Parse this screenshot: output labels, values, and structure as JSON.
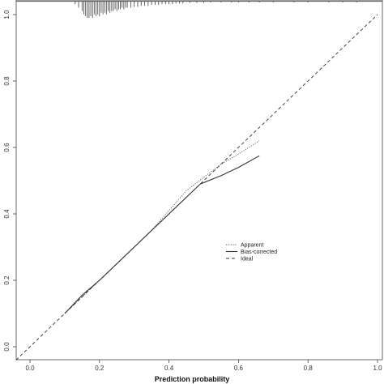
{
  "chart_data": {
    "type": "line",
    "title": "",
    "xlabel": "Prediction probability",
    "ylabel": "",
    "xlim": [
      0.0,
      1.0
    ],
    "ylim": [
      0.0,
      1.0
    ],
    "x_ticks": [
      "0.0",
      "0.2",
      "0.4",
      "0.6",
      "0.8",
      "1.0"
    ],
    "y_ticks": [
      "0.0",
      "0.2",
      "0.4",
      "0.6",
      "0.8",
      "1.0"
    ],
    "grid": false,
    "legend_position": "center-right",
    "series": [
      {
        "name": "Apparent",
        "style": "dotted",
        "color": "#555555",
        "x": [
          0.1,
          0.15,
          0.2,
          0.25,
          0.3,
          0.35,
          0.4,
          0.45,
          0.5,
          0.55,
          0.6,
          0.66
        ],
        "y": [
          0.1,
          0.15,
          0.2,
          0.25,
          0.3,
          0.35,
          0.41,
          0.47,
          0.51,
          0.55,
          0.58,
          0.62
        ]
      },
      {
        "name": "Bias-corrected",
        "style": "solid",
        "color": "#333333",
        "x": [
          0.1,
          0.15,
          0.2,
          0.25,
          0.3,
          0.35,
          0.4,
          0.45,
          0.49,
          0.55,
          0.6,
          0.66
        ],
        "y": [
          0.1,
          0.155,
          0.2,
          0.25,
          0.3,
          0.35,
          0.4,
          0.45,
          0.49,
          0.515,
          0.54,
          0.575
        ]
      },
      {
        "name": "Ideal",
        "style": "dashed",
        "color": "#333333",
        "x": [
          -0.04,
          1.0
        ],
        "y": [
          -0.04,
          1.0
        ]
      }
    ],
    "rug": {
      "x": [
        0.13,
        0.14,
        0.15,
        0.155,
        0.16,
        0.165,
        0.17,
        0.175,
        0.18,
        0.185,
        0.19,
        0.195,
        0.2,
        0.205,
        0.21,
        0.215,
        0.22,
        0.225,
        0.23,
        0.235,
        0.24,
        0.245,
        0.25,
        0.255,
        0.26,
        0.265,
        0.27,
        0.275,
        0.28,
        0.29,
        0.3,
        0.31,
        0.32,
        0.33,
        0.34,
        0.35,
        0.36,
        0.37,
        0.38,
        0.39,
        0.4,
        0.41,
        0.42,
        0.43,
        0.44,
        0.46,
        0.48,
        0.5,
        0.52,
        0.55,
        0.58,
        0.6,
        0.63,
        0.66,
        0.7,
        0.76,
        0.8,
        0.86,
        0.9,
        0.94
      ],
      "h": [
        0.01,
        0.02,
        0.03,
        0.04,
        0.045,
        0.05,
        0.05,
        0.045,
        0.05,
        0.04,
        0.045,
        0.04,
        0.045,
        0.035,
        0.04,
        0.035,
        0.04,
        0.03,
        0.035,
        0.03,
        0.03,
        0.025,
        0.03,
        0.025,
        0.025,
        0.02,
        0.025,
        0.02,
        0.02,
        0.02,
        0.018,
        0.018,
        0.015,
        0.015,
        0.015,
        0.012,
        0.012,
        0.012,
        0.01,
        0.01,
        0.01,
        0.01,
        0.008,
        0.008,
        0.008,
        0.006,
        0.006,
        0.006,
        0.005,
        0.005,
        0.005,
        0.004,
        0.004,
        0.004,
        0.004,
        0.003,
        0.003,
        0.003,
        0.003,
        0.003
      ]
    }
  }
}
